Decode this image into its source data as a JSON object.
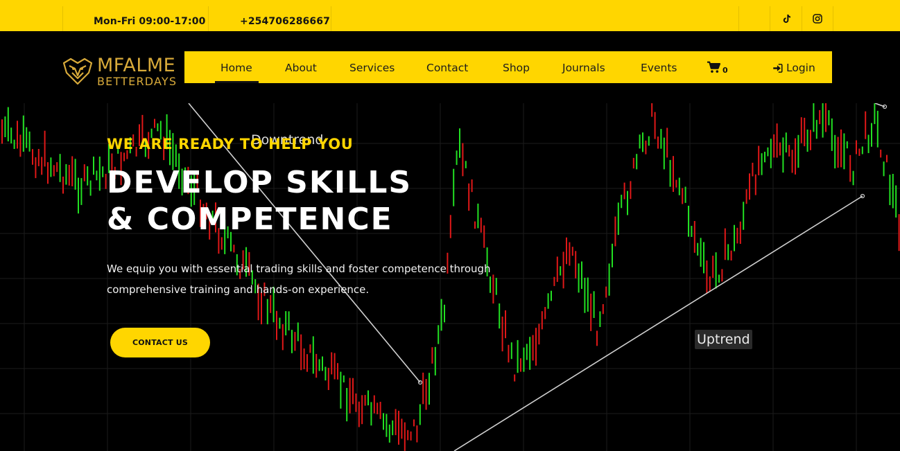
{
  "topbar": {
    "hours": "Mon-Fri 09:00-17:00",
    "phone": "+254706286667",
    "social": [
      {
        "icon": "tiktok-icon"
      },
      {
        "icon": "instagram-icon"
      }
    ]
  },
  "brand": {
    "name_line1": "MFALME",
    "name_line2": "BETTERDAYS",
    "color": "#d8aa3a"
  },
  "nav": {
    "items": [
      "Home",
      "About",
      "Services",
      "Contact",
      "Shop",
      "Journals",
      "Events"
    ],
    "active": "Home",
    "cart_count": "0",
    "login_label": "Login",
    "accent": "#ffd600"
  },
  "hero": {
    "eyebrow": "WE ARE READY TO HELP YOU",
    "headline_line1": "DEVELOP SKILLS",
    "headline_line2": "& COMPETENCE",
    "lead": "We equip you with essential trading skills and foster competence through comprehensive training and hands-on experience.",
    "cta_label": "CONTACT US",
    "chart_labels": {
      "downtrend": "Downtrend",
      "uptrend": "Uptrend"
    },
    "candle_colors": {
      "up": "#22e022",
      "down": "#e01818"
    }
  }
}
